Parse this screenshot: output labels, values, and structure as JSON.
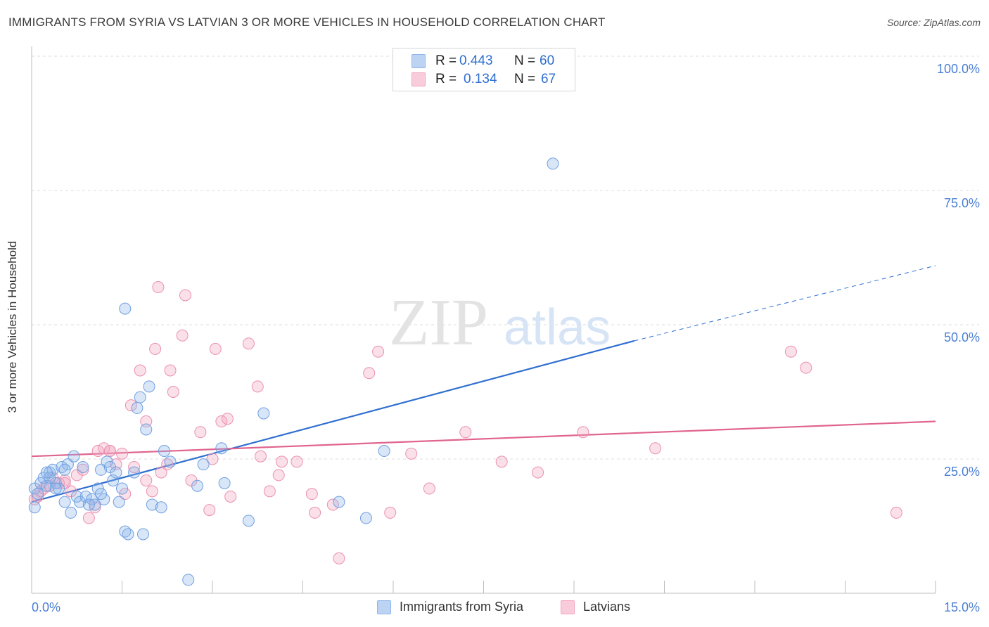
{
  "title": "IMMIGRANTS FROM SYRIA VS LATVIAN 3 OR MORE VEHICLES IN HOUSEHOLD CORRELATION CHART",
  "source": "Source: ZipAtlas.com",
  "watermark": {
    "zip": "ZIP",
    "atlas": "atlas"
  },
  "legend": {
    "r_label": "R =",
    "n_label": "N =",
    "rows": [
      {
        "r": "0.443",
        "n": "60",
        "color": "#8fb6ea"
      },
      {
        "r": "0.134",
        "n": "67",
        "color": "#f2a6bf"
      }
    ]
  },
  "colors": {
    "blue": "#8fb6ea",
    "blue_line": "#2f6fd0",
    "pink": "#f2a6bf",
    "pink_line": "#e0648f",
    "axis_text": "#4a7fd4"
  },
  "chart_data": {
    "type": "scatter",
    "title": "IMMIGRANTS FROM SYRIA VS LATVIAN 3 OR MORE VEHICLES IN HOUSEHOLD CORRELATION CHART",
    "xlabel": "",
    "ylabel": "3 or more Vehicles in Household",
    "xlim": [
      0,
      15
    ],
    "ylim": [
      0,
      100
    ],
    "x_tick_labels": [
      "0.0%",
      "15.0%"
    ],
    "y_tick_labels": [
      "100.0%",
      "75.0%",
      "50.0%",
      "25.0%"
    ],
    "y_ticks": [
      100,
      75,
      50,
      25
    ],
    "grid": true,
    "legend_position": "bottom-center",
    "series": [
      {
        "name": "Immigrants from Syria",
        "color": "#8fb6ea",
        "trend": {
          "x": [
            0,
            10.0
          ],
          "y": [
            17.0,
            47.0
          ],
          "dashed_to": [
            15.0,
            61.0
          ]
        },
        "points": [
          [
            0.05,
            16.0
          ],
          [
            0.05,
            19.5
          ],
          [
            0.1,
            18.5
          ],
          [
            0.15,
            20.5
          ],
          [
            0.2,
            21.5
          ],
          [
            0.25,
            20.0
          ],
          [
            0.3,
            22.5
          ],
          [
            0.35,
            23.0
          ],
          [
            0.4,
            20.5
          ],
          [
            0.45,
            19.5
          ],
          [
            0.5,
            23.5
          ],
          [
            0.55,
            17.0
          ],
          [
            0.6,
            24.0
          ],
          [
            0.65,
            15.0
          ],
          [
            0.75,
            18.0
          ],
          [
            0.8,
            17.0
          ],
          [
            0.9,
            18.0
          ],
          [
            1.0,
            17.5
          ],
          [
            1.05,
            16.5
          ],
          [
            1.1,
            19.5
          ],
          [
            1.15,
            23.0
          ],
          [
            1.2,
            17.5
          ],
          [
            1.25,
            24.5
          ],
          [
            1.3,
            23.5
          ],
          [
            1.35,
            21.0
          ],
          [
            1.45,
            17.0
          ],
          [
            1.55,
            11.5
          ],
          [
            1.6,
            11.0
          ],
          [
            1.7,
            22.5
          ],
          [
            1.8,
            36.5
          ],
          [
            1.9,
            30.5
          ],
          [
            1.95,
            38.5
          ],
          [
            1.55,
            53.0
          ],
          [
            1.75,
            34.5
          ],
          [
            2.0,
            16.5
          ],
          [
            2.15,
            16.0
          ],
          [
            2.2,
            26.5
          ],
          [
            2.3,
            24.5
          ],
          [
            2.85,
            24.0
          ],
          [
            3.15,
            27.0
          ],
          [
            3.2,
            20.5
          ],
          [
            2.75,
            20.0
          ],
          [
            3.6,
            13.5
          ],
          [
            3.85,
            33.5
          ],
          [
            5.1,
            17.0
          ],
          [
            5.55,
            14.0
          ],
          [
            5.85,
            26.5
          ],
          [
            8.65,
            80.0
          ],
          [
            2.6,
            2.5
          ],
          [
            1.85,
            11.0
          ],
          [
            0.7,
            25.5
          ],
          [
            0.95,
            16.5
          ],
          [
            1.15,
            18.5
          ],
          [
            0.55,
            23.0
          ],
          [
            0.85,
            23.5
          ],
          [
            0.3,
            21.5
          ],
          [
            0.4,
            19.5
          ],
          [
            1.4,
            22.5
          ],
          [
            1.5,
            19.5
          ],
          [
            0.25,
            22.5
          ]
        ]
      },
      {
        "name": "Latvians",
        "color": "#f2a6bf",
        "trend": {
          "x": [
            0,
            15.0
          ],
          "y": [
            25.5,
            32.0
          ]
        },
        "points": [
          [
            0.05,
            17.5
          ],
          [
            0.1,
            18.0
          ],
          [
            0.2,
            19.5
          ],
          [
            0.3,
            20.0
          ],
          [
            0.45,
            20.5
          ],
          [
            0.55,
            21.0
          ],
          [
            0.65,
            19.0
          ],
          [
            0.75,
            22.0
          ],
          [
            0.85,
            23.0
          ],
          [
            0.95,
            14.0
          ],
          [
            1.05,
            16.0
          ],
          [
            1.1,
            26.5
          ],
          [
            1.2,
            27.0
          ],
          [
            1.3,
            26.5
          ],
          [
            1.4,
            24.0
          ],
          [
            1.5,
            26.0
          ],
          [
            1.55,
            18.5
          ],
          [
            1.65,
            35.0
          ],
          [
            1.7,
            23.5
          ],
          [
            1.8,
            41.5
          ],
          [
            1.9,
            32.0
          ],
          [
            2.0,
            19.0
          ],
          [
            2.05,
            45.5
          ],
          [
            2.1,
            57.0
          ],
          [
            2.25,
            24.0
          ],
          [
            2.3,
            41.5
          ],
          [
            2.35,
            37.5
          ],
          [
            2.5,
            48.0
          ],
          [
            2.55,
            55.5
          ],
          [
            2.65,
            21.0
          ],
          [
            2.8,
            30.0
          ],
          [
            2.95,
            15.5
          ],
          [
            3.0,
            25.0
          ],
          [
            3.05,
            45.5
          ],
          [
            3.15,
            32.0
          ],
          [
            3.25,
            32.5
          ],
          [
            3.3,
            18.0
          ],
          [
            3.6,
            46.5
          ],
          [
            3.75,
            38.5
          ],
          [
            3.8,
            25.5
          ],
          [
            3.95,
            19.0
          ],
          [
            4.1,
            22.0
          ],
          [
            4.15,
            24.5
          ],
          [
            4.4,
            24.5
          ],
          [
            4.65,
            18.5
          ],
          [
            4.7,
            15.0
          ],
          [
            5.0,
            16.5
          ],
          [
            5.1,
            6.5
          ],
          [
            5.6,
            41.0
          ],
          [
            5.75,
            45.0
          ],
          [
            5.95,
            15.0
          ],
          [
            6.3,
            26.0
          ],
          [
            6.6,
            19.5
          ],
          [
            7.2,
            30.0
          ],
          [
            7.8,
            24.5
          ],
          [
            8.4,
            22.5
          ],
          [
            9.15,
            30.0
          ],
          [
            10.35,
            27.0
          ],
          [
            12.6,
            45.0
          ],
          [
            12.85,
            42.0
          ],
          [
            14.35,
            15.0
          ],
          [
            0.15,
            19.0
          ],
          [
            0.35,
            21.5
          ],
          [
            0.55,
            20.5
          ],
          [
            1.3,
            26.5
          ],
          [
            1.9,
            21.0
          ],
          [
            2.15,
            22.5
          ]
        ]
      }
    ]
  }
}
